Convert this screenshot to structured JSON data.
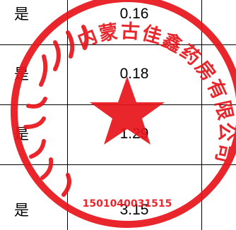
{
  "table": {
    "rows": [
      {
        "flag": "是",
        "value": "0.16"
      },
      {
        "flag": "是",
        "value": "0.18"
      },
      {
        "flag": "是",
        "value": "1.29"
      },
      {
        "flag": "是",
        "value": "3.15"
      }
    ]
  },
  "seal": {
    "color": "#e8141b",
    "lettering": "内蒙古佳鑫药房有限公司",
    "code": "1501040031515"
  }
}
